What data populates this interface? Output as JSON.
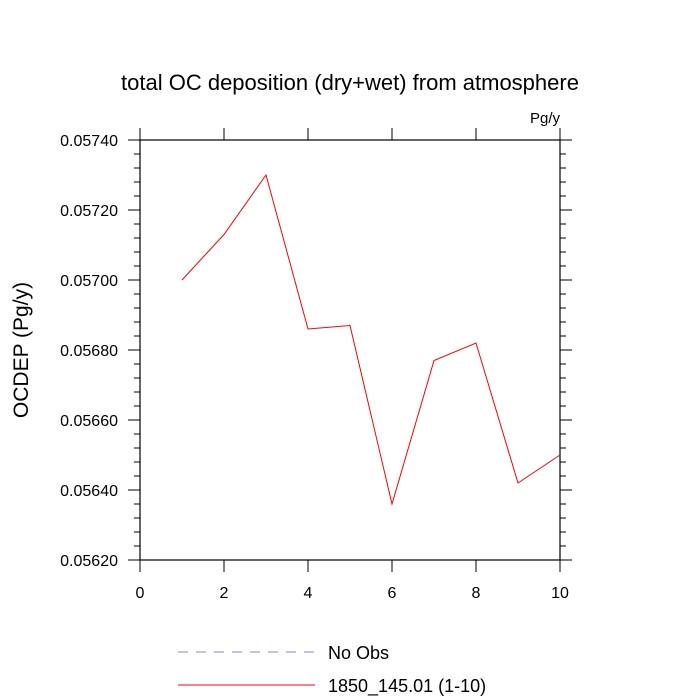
{
  "chart_data": {
    "type": "line",
    "title": "total OC deposition (dry+wet) from atmosphere",
    "units_label": "Pg/y",
    "ylabel": "OCDEP  (Pg/y)",
    "xlabel": "",
    "xlim": [
      0,
      10
    ],
    "ylim": [
      0.0562,
      0.0574
    ],
    "x_ticks": [
      "0",
      "2",
      "4",
      "6",
      "8",
      "10"
    ],
    "y_ticks": [
      "0.05620",
      "0.05640",
      "0.05660",
      "0.05680",
      "0.05700",
      "0.05720",
      "0.05740"
    ],
    "grid": false,
    "series": [
      {
        "name": "1850_145.01 (1-10)",
        "color": "#ff0000",
        "x": [
          1,
          2,
          3,
          4,
          5,
          6,
          7,
          8,
          9,
          10
        ],
        "y": [
          0.057,
          0.05713,
          0.0573,
          0.05686,
          0.05687,
          0.05636,
          0.05677,
          0.05682,
          0.05642,
          0.0565
        ]
      }
    ],
    "legend": [
      {
        "label": "No Obs",
        "color": "#8080ff",
        "style": "dashed"
      },
      {
        "label": "1850_145.01 (1-10)",
        "color": "#ff0000",
        "style": "solid"
      }
    ]
  }
}
